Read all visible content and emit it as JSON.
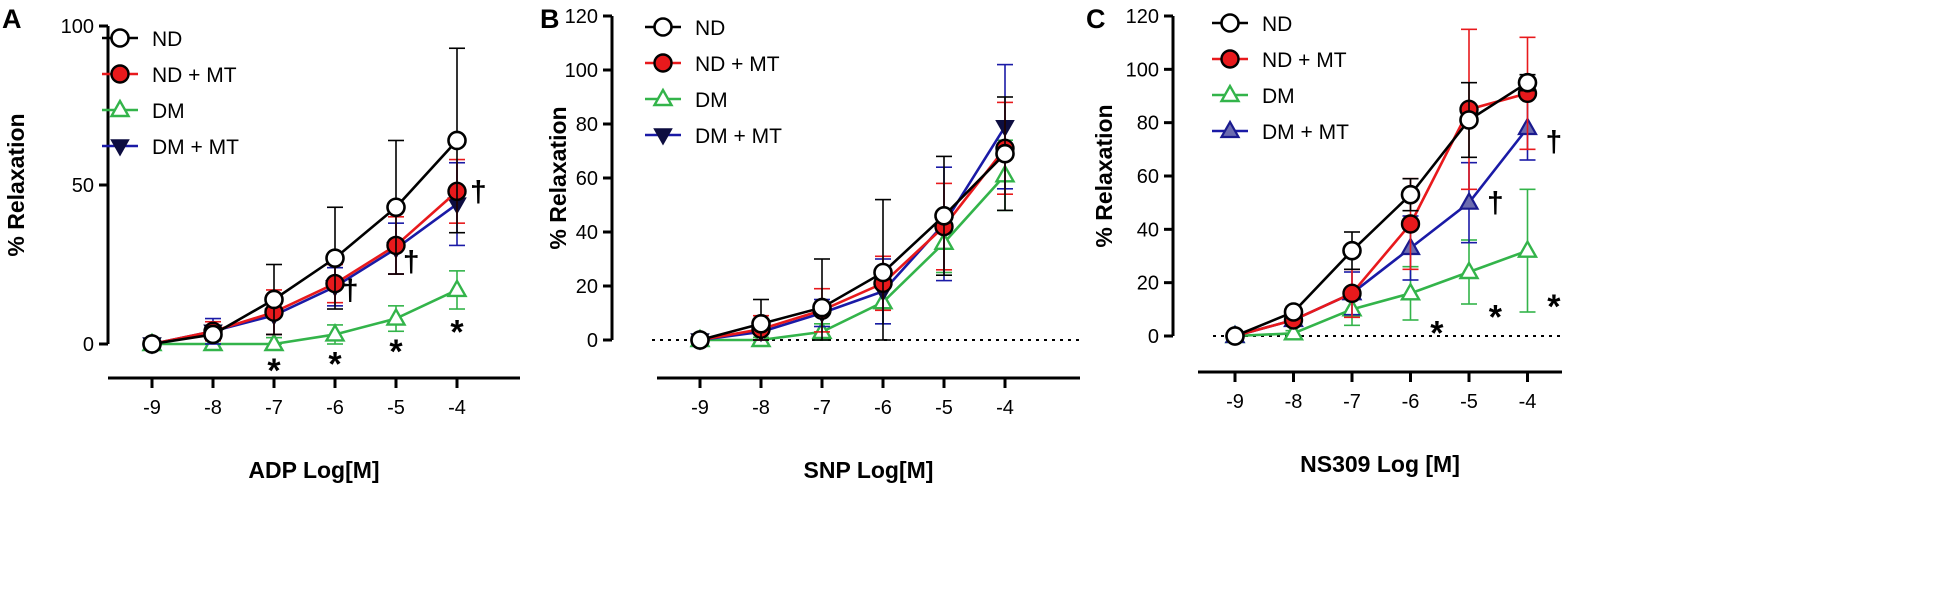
{
  "figure": {
    "description_none": null
  },
  "colors": {
    "ND": "#000000",
    "ND_MT": "#e8191c",
    "DM": "#33b44a",
    "DM_MT": "#1a1aa6",
    "axis": "#000000"
  },
  "chart_data": [
    {
      "type": "line",
      "panel_label": "A",
      "xlabel": "ADP Log[M]",
      "ylabel": "% Relaxation",
      "x": [
        -9,
        -8,
        -7,
        -6,
        -5,
        -4
      ],
      "x_tick_labels": [
        "-9",
        "-8",
        "-7",
        "-6",
        "-5",
        "-4"
      ],
      "ylim": [
        0,
        100
      ],
      "y_ticks": [
        0,
        50,
        100
      ],
      "y_tick_labels": [
        "0",
        "50",
        "100"
      ],
      "zero_dotted_line": false,
      "legend": [
        {
          "key": "ND",
          "label": "ND"
        },
        {
          "key": "ND_MT",
          "label": "ND + MT"
        },
        {
          "key": "DM",
          "label": "DM"
        },
        {
          "key": "DM_MT",
          "label": "DM + MT"
        }
      ],
      "series": [
        {
          "key": "ND",
          "name": "ND",
          "marker": "circle-open",
          "values": [
            0,
            3,
            14,
            27,
            43,
            64
          ],
          "err": [
            0,
            1,
            11,
            16,
            21,
            29
          ]
        },
        {
          "key": "ND_MT",
          "name": "ND + MT",
          "marker": "circle-filled",
          "values": [
            0,
            4,
            10,
            19,
            31,
            48
          ],
          "err": [
            0,
            3,
            7,
            6,
            9,
            10
          ]
        },
        {
          "key": "DM",
          "name": "DM",
          "marker": "triangle-up-open",
          "values": [
            0,
            0,
            0,
            3,
            8,
            17
          ],
          "err": [
            0,
            0,
            2,
            3,
            4,
            6
          ]
        },
        {
          "key": "DM_MT",
          "name": "DM + MT",
          "marker": "triangle-down-filled",
          "values": [
            0,
            4,
            9,
            18,
            30,
            44
          ],
          "err": [
            0,
            4,
            6,
            6,
            8,
            13
          ]
        }
      ],
      "annotations": [
        {
          "text": "*",
          "x": -7,
          "y": -5
        },
        {
          "text": "*",
          "x": -6,
          "y": -3
        },
        {
          "text": "*",
          "x": -5,
          "y": 1
        },
        {
          "text": "*",
          "x": -4,
          "y": 7
        },
        {
          "text": "†",
          "x": -5.75,
          "y": 17
        },
        {
          "text": "†",
          "x": -4.75,
          "y": 26
        },
        {
          "text": "†",
          "x": -3.65,
          "y": 48
        }
      ]
    },
    {
      "type": "line",
      "panel_label": "B",
      "xlabel": "SNP Log[M]",
      "ylabel": "% Relaxation",
      "x": [
        -9,
        -8,
        -7,
        -6,
        -5,
        -4
      ],
      "x_tick_labels": [
        "-9",
        "-8",
        "-7",
        "-6",
        "-5",
        "-4"
      ],
      "ylim": [
        0,
        120
      ],
      "y_ticks": [
        0,
        20,
        40,
        60,
        80,
        100,
        120
      ],
      "y_tick_labels": [
        "0",
        "20",
        "40",
        "60",
        "80",
        "100",
        "120"
      ],
      "zero_dotted_line": true,
      "legend": [
        {
          "key": "ND",
          "label": "ND"
        },
        {
          "key": "ND_MT",
          "label": "ND + MT"
        },
        {
          "key": "DM",
          "label": "DM"
        },
        {
          "key": "DM_MT",
          "label": "DM + MT"
        }
      ],
      "series": [
        {
          "key": "ND",
          "name": "ND",
          "marker": "circle-open",
          "values": [
            0,
            6,
            12,
            25,
            46,
            69
          ],
          "err": [
            0,
            9,
            18,
            27,
            22,
            21
          ]
        },
        {
          "key": "ND_MT",
          "name": "ND + MT",
          "marker": "circle-filled",
          "values": [
            0,
            4,
            11,
            21,
            42,
            71
          ],
          "err": [
            0,
            5,
            8,
            10,
            16,
            17
          ]
        },
        {
          "key": "DM",
          "name": "DM",
          "marker": "triangle-up-open",
          "values": [
            0,
            0,
            3,
            14,
            36,
            61
          ],
          "err": [
            0,
            1,
            3,
            8,
            11,
            13
          ]
        },
        {
          "key": "DM_MT",
          "name": "DM + MT",
          "marker": "triangle-down-filled",
          "values": [
            0,
            3,
            10,
            18,
            43,
            79
          ],
          "err": [
            0,
            3,
            5,
            12,
            21,
            23
          ]
        }
      ],
      "annotations": []
    },
    {
      "type": "line",
      "panel_label": "C",
      "xlabel": "NS309 Log [M]",
      "ylabel": "% Relaxation",
      "x": [
        -9,
        -8,
        -7,
        -6,
        -5,
        -4
      ],
      "x_tick_labels": [
        "-9",
        "-8",
        "-7",
        "-6",
        "-5",
        "-4"
      ],
      "ylim": [
        0,
        120
      ],
      "y_ticks": [
        0,
        20,
        40,
        60,
        80,
        100,
        120
      ],
      "y_tick_labels": [
        "0",
        "20",
        "40",
        "60",
        "80",
        "100",
        "120"
      ],
      "zero_dotted_line": true,
      "legend": [
        {
          "key": "ND",
          "label": "ND"
        },
        {
          "key": "ND_MT",
          "label": "ND + MT"
        },
        {
          "key": "DM",
          "label": "DM"
        },
        {
          "key": "DM_MT",
          "label": "DM + MT"
        }
      ],
      "series": [
        {
          "key": "ND",
          "name": "ND",
          "marker": "circle-open",
          "values": [
            0,
            9,
            32,
            53,
            81,
            95
          ],
          "err": [
            0,
            2,
            7,
            6,
            14,
            3
          ]
        },
        {
          "key": "ND_MT",
          "name": "ND + MT",
          "marker": "circle-filled",
          "values": [
            0,
            6,
            16,
            42,
            85,
            91
          ],
          "err": [
            0,
            2,
            9,
            17,
            30,
            21
          ]
        },
        {
          "key": "DM",
          "name": "DM",
          "marker": "triangle-up-open",
          "values": [
            0,
            1,
            10,
            16,
            24,
            32
          ],
          "err": [
            0,
            1,
            6,
            10,
            12,
            23
          ]
        },
        {
          "key": "DM_MT",
          "name": "DM + MT",
          "marker": "triangle-up-filled",
          "values": [
            0,
            6,
            16,
            33,
            50,
            78
          ],
          "err": [
            0,
            2,
            8,
            12,
            15,
            12
          ]
        }
      ],
      "annotations": [
        {
          "text": "*",
          "x": -5.55,
          "y": 5
        },
        {
          "text": "*",
          "x": -4.55,
          "y": 11
        },
        {
          "text": "*",
          "x": -3.55,
          "y": 15
        },
        {
          "text": "†",
          "x": -4.55,
          "y": 50
        },
        {
          "text": "†",
          "x": -3.55,
          "y": 73
        }
      ]
    }
  ]
}
